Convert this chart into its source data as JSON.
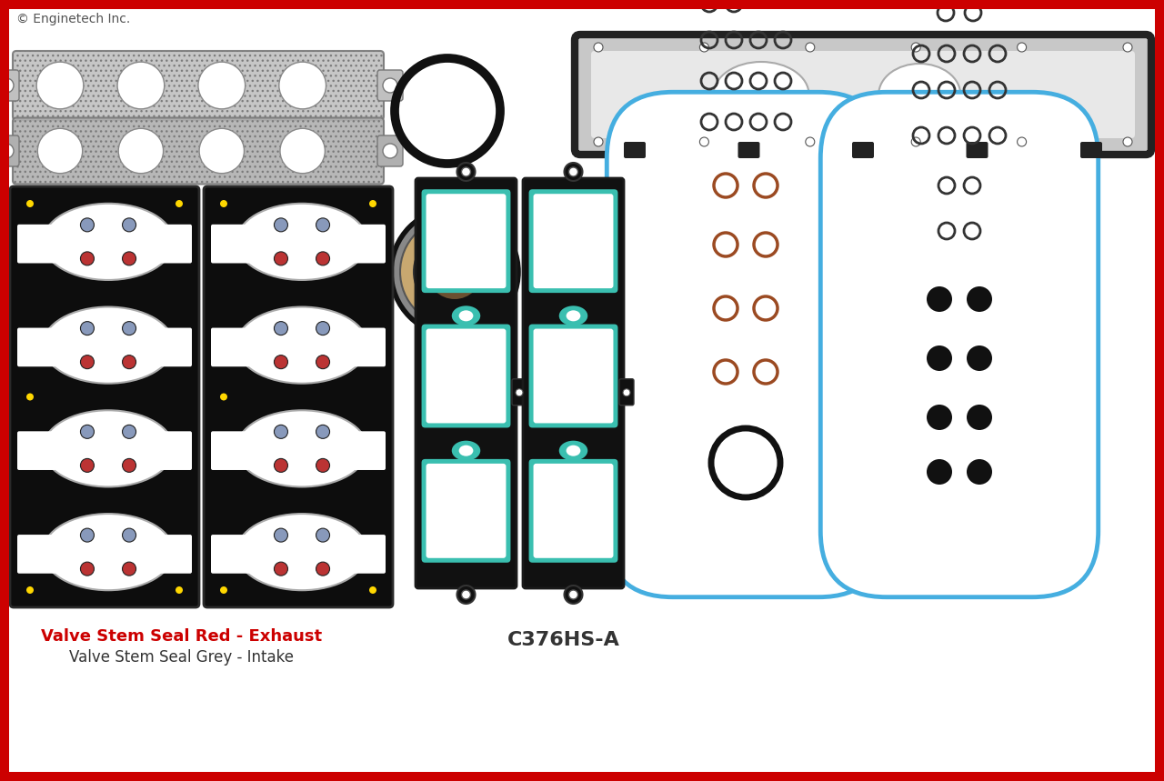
{
  "copyright_text": "© Enginetech Inc.",
  "label1": "Valve Stem Seal Red - Exhaust",
  "label2": "Valve Stem Seal Grey - Intake",
  "part_number": "C376HS-A",
  "bg_color": "#ffffff",
  "border_color": "#cc0000",
  "gasket_teal_color": "#3abfb0",
  "gasket_blue_color": "#45aee0",
  "label1_color": "#cc0000",
  "label2_color": "#333333",
  "copyright_color": "#555555",
  "metal_color": "#b8b8b8",
  "black_gasket": "#111111",
  "copper_color": "#9b4a22"
}
